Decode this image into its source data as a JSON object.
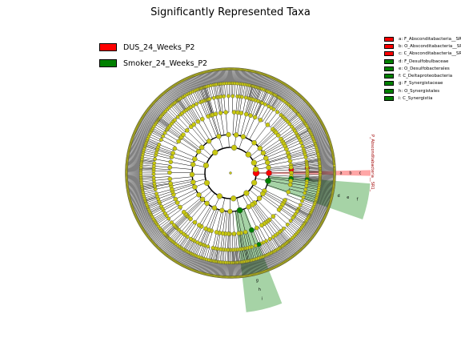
{
  "chart_data": {
    "type": "cladogram",
    "title": "Significantly Represented Taxa",
    "classes": [
      {
        "name": "DUS_24_Weeks_P2",
        "color": "#ff0000"
      },
      {
        "name": "Smoker_24_Weeks_P2",
        "color": "#008000"
      }
    ],
    "key": [
      {
        "label": "a: F_Absconditabacteria__SR1_",
        "class": "DUS_24_Weeks_P2"
      },
      {
        "label": "b: O_Absconditabacteria__SR1_",
        "class": "DUS_24_Weeks_P2"
      },
      {
        "label": "c: C_Absconditabacteria__SR1_",
        "class": "DUS_24_Weeks_P2"
      },
      {
        "label": "d: F_Desulfobulbaceae",
        "class": "Smoker_24_Weeks_P2"
      },
      {
        "label": "e: O_Desulfobacterales",
        "class": "Smoker_24_Weeks_P2"
      },
      {
        "label": "f: C_Deltaproteobacteria",
        "class": "Smoker_24_Weeks_P2"
      },
      {
        "label": "g: F_Synergistaceae",
        "class": "Smoker_24_Weeks_P2"
      },
      {
        "label": "h: O_Synergistales",
        "class": "Smoker_24_Weeks_P2"
      },
      {
        "label": "i: C_Synergistia",
        "class": "Smoker_24_Weeks_P2"
      }
    ],
    "clade_label": "P_Absconditabacteria__SR1_",
    "wedge_letters": [
      "a",
      "b",
      "c"
    ],
    "neutral_node_color": "#c8c810",
    "levels": [
      "phylum",
      "class",
      "order",
      "family",
      "genus",
      "species"
    ]
  }
}
